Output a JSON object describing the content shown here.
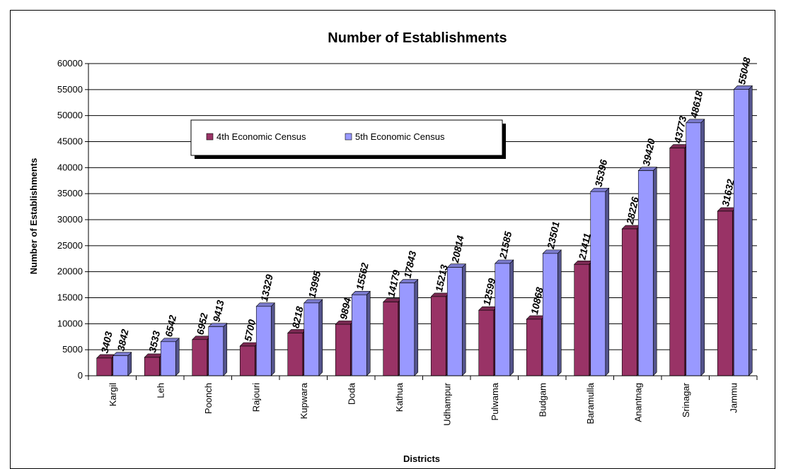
{
  "chart_data": {
    "type": "bar",
    "title": "Number of Establishments",
    "xlabel": "Districts",
    "ylabel": "Number of Establishments",
    "ylim": [
      0,
      60000
    ],
    "ytick_step": 5000,
    "grid": true,
    "legend_placement": "top-left-inside",
    "categories": [
      "Kargil",
      "Leh",
      "Poonch",
      "Rajouri",
      "Kupwara",
      "Doda",
      "Kathua",
      "Udhampur",
      "Pulwama",
      "Budgam",
      "Baramulla",
      "Anantnag",
      "Srinagar",
      "Jammu"
    ],
    "series": [
      {
        "name": "4th Economic Census",
        "color": "#993366",
        "values": [
          3403,
          3533,
          6952,
          5700,
          8218,
          9894,
          14179,
          15213,
          12599,
          10868,
          21411,
          28226,
          43773,
          31632
        ]
      },
      {
        "name": "5th Economic Census",
        "color": "#9999ff",
        "values": [
          3842,
          6542,
          9413,
          13329,
          13995,
          15562,
          17843,
          20814,
          21585,
          23501,
          35396,
          39420,
          48618,
          55048
        ]
      }
    ]
  }
}
